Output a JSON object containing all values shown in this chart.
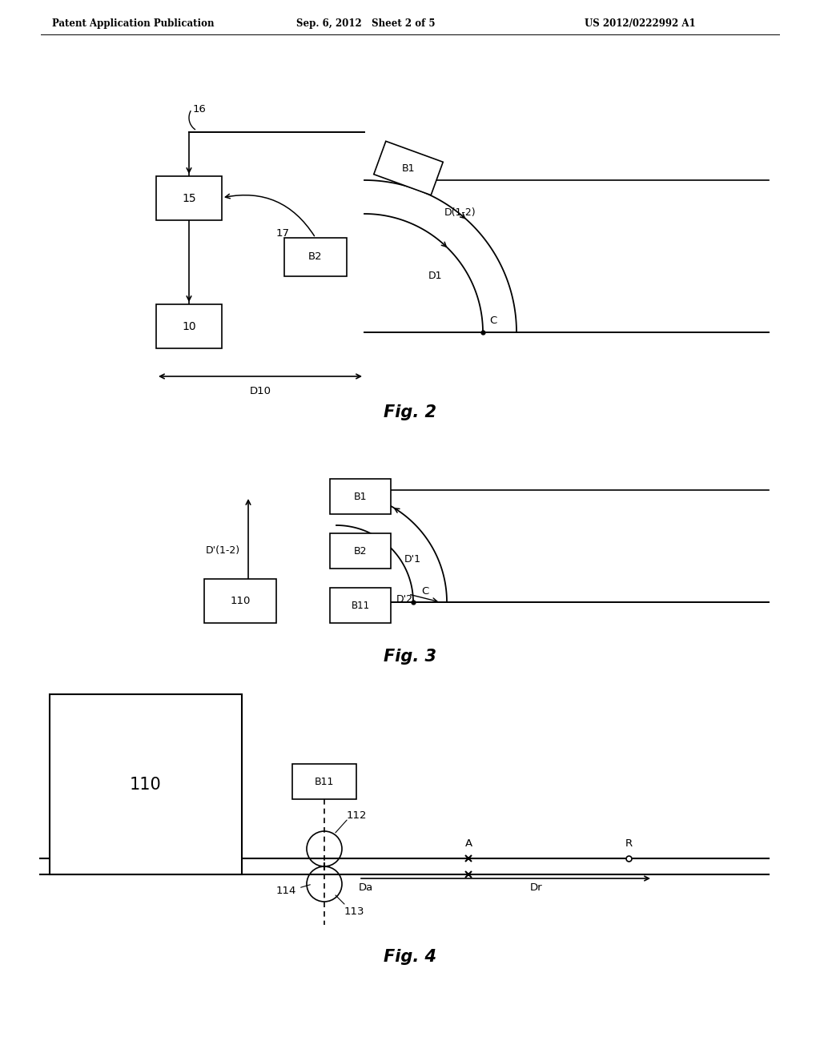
{
  "bg_color": "#ffffff",
  "header_left": "Patent Application Publication",
  "header_mid": "Sep. 6, 2012   Sheet 2 of 5",
  "header_right": "US 2012/0222992 A1",
  "fig2_label": "Fig. 2",
  "fig3_label": "Fig. 3",
  "fig4_label": "Fig. 4"
}
